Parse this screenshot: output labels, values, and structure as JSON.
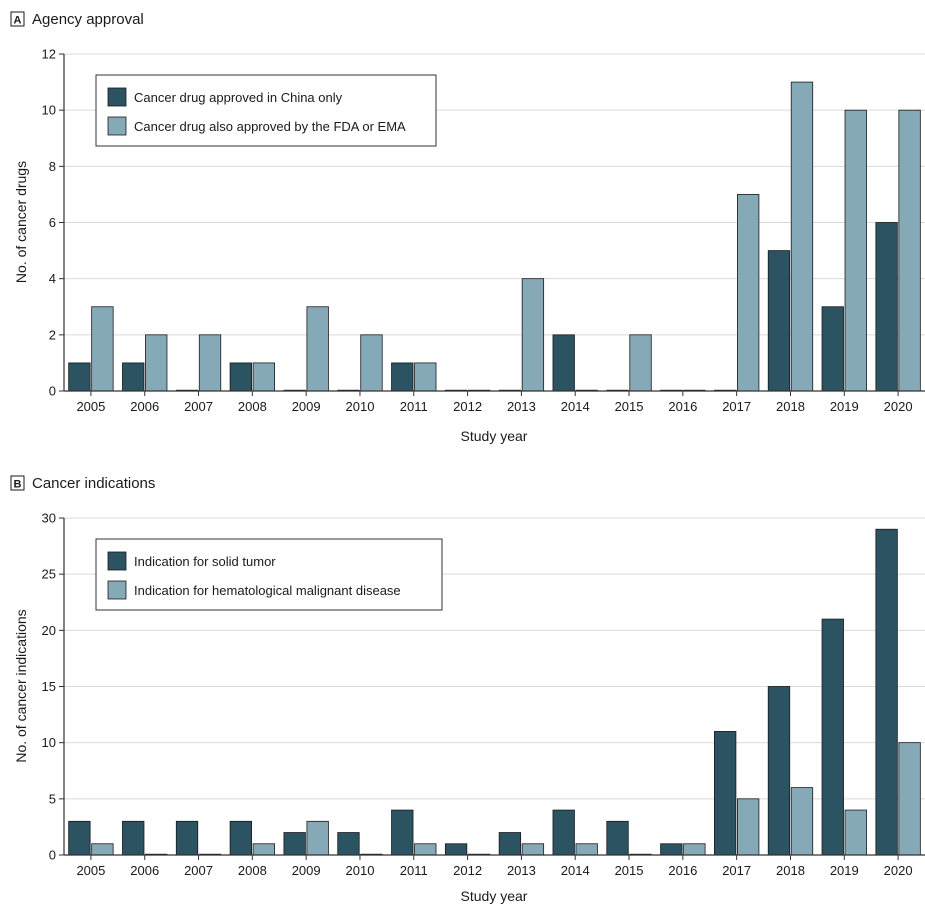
{
  "colors": {
    "series_dark": "#2c5361",
    "series_light": "#86a9b8",
    "gridline": "#d9d9d9",
    "axis": "#333333"
  },
  "chart_data": [
    {
      "type": "bar",
      "panel_letter": "A",
      "title": "Agency approval",
      "xlabel": "Study year",
      "ylabel": "No. of cancer drugs",
      "ylim": [
        0,
        12
      ],
      "yticks": [
        0,
        2,
        4,
        6,
        8,
        10,
        12
      ],
      "grid": true,
      "legend_position": "top-left",
      "categories": [
        "2005",
        "2006",
        "2007",
        "2008",
        "2009",
        "2010",
        "2011",
        "2012",
        "2013",
        "2014",
        "2015",
        "2016",
        "2017",
        "2018",
        "2019",
        "2020"
      ],
      "series": [
        {
          "name": "Cancer drug approved in China only",
          "color": "#2c5361",
          "values": [
            1,
            1,
            0,
            1,
            0,
            0,
            1,
            0,
            0,
            2,
            0,
            0,
            0,
            5,
            3,
            6
          ]
        },
        {
          "name": "Cancer drug also approved by the FDA or EMA",
          "color": "#86a9b8",
          "values": [
            3,
            2,
            2,
            1,
            3,
            2,
            1,
            0,
            4,
            0,
            2,
            0,
            7,
            11,
            10,
            10
          ]
        }
      ]
    },
    {
      "type": "bar",
      "panel_letter": "B",
      "title": "Cancer indications",
      "xlabel": "Study year",
      "ylabel": "No. of cancer indications",
      "ylim": [
        0,
        30
      ],
      "yticks": [
        0,
        5,
        10,
        15,
        20,
        25,
        30
      ],
      "grid": true,
      "legend_position": "top-left",
      "categories": [
        "2005",
        "2006",
        "2007",
        "2008",
        "2009",
        "2010",
        "2011",
        "2012",
        "2013",
        "2014",
        "2015",
        "2016",
        "2017",
        "2018",
        "2019",
        "2020"
      ],
      "series": [
        {
          "name": "Indication for solid tumor",
          "color": "#2c5361",
          "values": [
            3,
            3,
            3,
            3,
            2,
            2,
            4,
            1,
            2,
            4,
            3,
            1,
            11,
            15,
            21,
            29
          ]
        },
        {
          "name": "Indication for hematological malignant disease",
          "color": "#86a9b8",
          "values": [
            1,
            0,
            0,
            1,
            3,
            0,
            1,
            0,
            1,
            1,
            0,
            1,
            5,
            6,
            4,
            10
          ]
        }
      ]
    }
  ]
}
